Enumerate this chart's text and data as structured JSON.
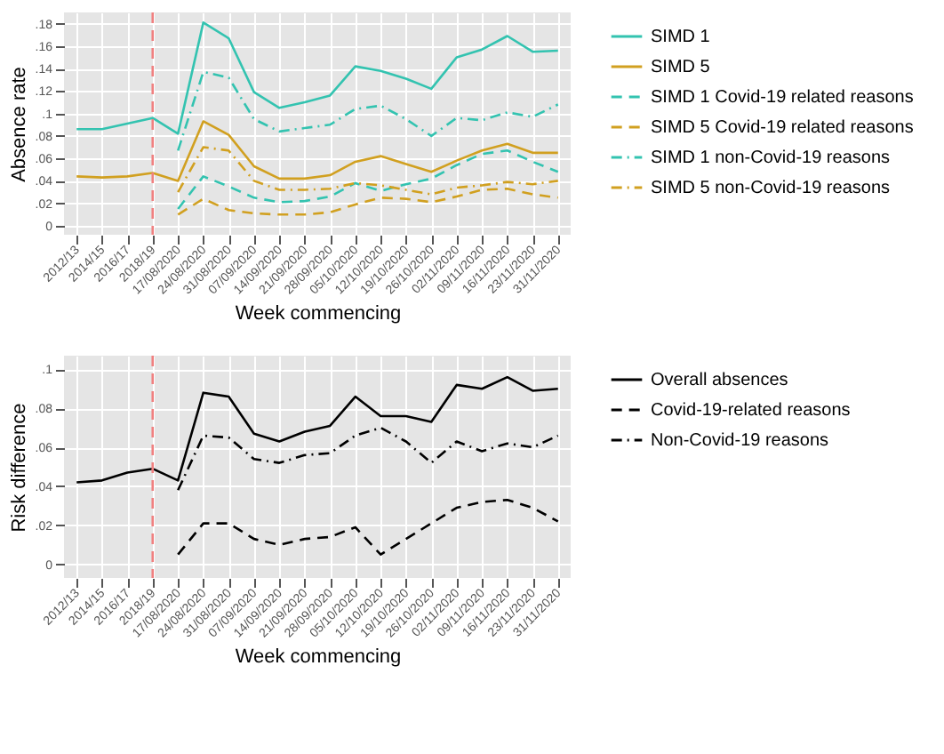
{
  "chart_data": [
    {
      "type": "line",
      "xlabel": "Week commencing",
      "ylabel": "Absence rate",
      "categories": [
        "2012/13",
        "2014/15",
        "2016/17",
        "2018/19",
        "17/08/2020",
        "24/08/2020",
        "31/08/2020",
        "07/09/2020",
        "14/09/2020",
        "21/09/2020",
        "28/09/2020",
        "05/10/2020",
        "12/10/2020",
        "19/10/2020",
        "26/10/2020",
        "02/11/2020",
        "09/11/2020",
        "16/11/2020",
        "23/11/2020",
        "31/11/2020"
      ],
      "series": [
        {
          "name": "SIMD 1",
          "color": "#33c3b0",
          "line_style": "solid",
          "values": [
            0.086,
            0.086,
            0.091,
            0.096,
            0.082,
            0.181,
            0.167,
            0.119,
            0.105,
            0.11,
            0.116,
            0.142,
            0.138,
            0.131,
            0.122,
            0.15,
            0.157,
            0.169,
            0.155,
            0.156
          ]
        },
        {
          "name": "SIMD 5",
          "color": "#d1a020",
          "line_style": "solid",
          "values": [
            0.044,
            0.043,
            0.044,
            0.047,
            0.04,
            0.093,
            0.081,
            0.053,
            0.042,
            0.042,
            0.045,
            0.057,
            0.062,
            0.055,
            0.048,
            0.058,
            0.067,
            0.073,
            0.065,
            0.065
          ]
        },
        {
          "name": "SIMD 1 Covid-19 related reasons",
          "color": "#33c3b0",
          "line_style": "dashed",
          "values": [
            null,
            null,
            null,
            null,
            0.015,
            0.044,
            0.035,
            0.025,
            0.021,
            0.022,
            0.026,
            0.038,
            0.031,
            0.037,
            0.042,
            0.054,
            0.064,
            0.067,
            0.057,
            0.048
          ]
        },
        {
          "name": "SIMD 5 Covid-19 related reasons",
          "color": "#d1a020",
          "line_style": "dashed",
          "values": [
            null,
            null,
            null,
            null,
            0.01,
            0.024,
            0.014,
            0.011,
            0.01,
            0.01,
            0.012,
            0.019,
            0.025,
            0.024,
            0.021,
            0.026,
            0.032,
            0.033,
            0.028,
            0.025
          ]
        },
        {
          "name": "SIMD 1 non-Covid-19 reasons",
          "color": "#33c3b0",
          "line_style": "dashdot",
          "values": [
            null,
            null,
            null,
            null,
            0.067,
            0.137,
            0.132,
            0.095,
            0.084,
            0.087,
            0.09,
            0.104,
            0.107,
            0.095,
            0.08,
            0.096,
            0.094,
            0.101,
            0.097,
            0.108
          ]
        },
        {
          "name": "SIMD 5 non-Covid-19 reasons",
          "color": "#d1a020",
          "line_style": "dashdot",
          "values": [
            null,
            null,
            null,
            null,
            0.03,
            0.07,
            0.067,
            0.04,
            0.032,
            0.032,
            0.033,
            0.038,
            0.036,
            0.032,
            0.028,
            0.034,
            0.036,
            0.039,
            0.037,
            0.04
          ]
        }
      ],
      "ylim": [
        -0.008,
        0.19
      ],
      "yticks": [
        0,
        {
          "value": 0.02,
          "label": ".02"
        },
        {
          "value": 0.04,
          "label": ".04"
        },
        {
          "value": 0.06,
          "label": ".06"
        },
        {
          "value": 0.08,
          "label": ".08"
        },
        {
          "value": 0.1,
          "label": ".1"
        },
        {
          "value": 0.12,
          "label": ".12"
        },
        {
          "value": 0.14,
          "label": ".14"
        },
        {
          "value": 0.16,
          "label": ".16"
        },
        {
          "value": 0.18,
          "label": ".18"
        }
      ],
      "ref_lines": [
        {
          "axis": "x",
          "value": "2018/19",
          "color": "#f08080",
          "line_style": "dashed"
        }
      ],
      "grid": true,
      "legend": "right"
    },
    {
      "type": "line",
      "xlabel": "Week commencing",
      "ylabel": "Risk difference",
      "categories": [
        "2012/13",
        "2014/15",
        "2016/17",
        "2018/19",
        "17/08/2020",
        "24/08/2020",
        "31/08/2020",
        "07/09/2020",
        "14/09/2020",
        "21/09/2020",
        "28/09/2020",
        "05/10/2020",
        "12/10/2020",
        "19/10/2020",
        "26/10/2020",
        "02/11/2020",
        "09/11/2020",
        "16/11/2020",
        "23/11/2020",
        "31/11/2020"
      ],
      "series": [
        {
          "name": "Overall absences",
          "color": "#000000",
          "line_style": "solid",
          "values": [
            0.042,
            0.043,
            0.047,
            0.049,
            0.043,
            0.088,
            0.086,
            0.067,
            0.063,
            0.068,
            0.071,
            0.086,
            0.076,
            0.076,
            0.073,
            0.092,
            0.09,
            0.096,
            0.089,
            0.09
          ]
        },
        {
          "name": "Covid-19-related reasons",
          "color": "#000000",
          "line_style": "dashed",
          "values": [
            null,
            null,
            null,
            null,
            0.005,
            0.021,
            0.021,
            0.013,
            0.01,
            0.013,
            0.014,
            0.019,
            0.005,
            0.013,
            0.021,
            0.029,
            0.032,
            0.033,
            0.029,
            0.022
          ]
        },
        {
          "name": "Non-Covid-19 reasons",
          "color": "#000000",
          "line_style": "dashdot",
          "values": [
            null,
            null,
            null,
            null,
            0.038,
            0.066,
            0.065,
            0.054,
            0.052,
            0.056,
            0.057,
            0.066,
            0.07,
            0.063,
            0.052,
            0.063,
            0.058,
            0.062,
            0.06,
            0.066
          ]
        }
      ],
      "ylim": [
        -0.007,
        0.107
      ],
      "yticks": [
        0,
        {
          "value": 0.02,
          "label": ".02"
        },
        {
          "value": 0.04,
          "label": ".04"
        },
        {
          "value": 0.06,
          "label": ".06"
        },
        {
          "value": 0.08,
          "label": ".08"
        },
        {
          "value": 0.1,
          "label": ".1"
        }
      ],
      "ref_lines": [
        {
          "axis": "x",
          "value": "2018/19",
          "color": "#f08080",
          "line_style": "dashed"
        }
      ],
      "grid": true,
      "legend": "right"
    }
  ]
}
